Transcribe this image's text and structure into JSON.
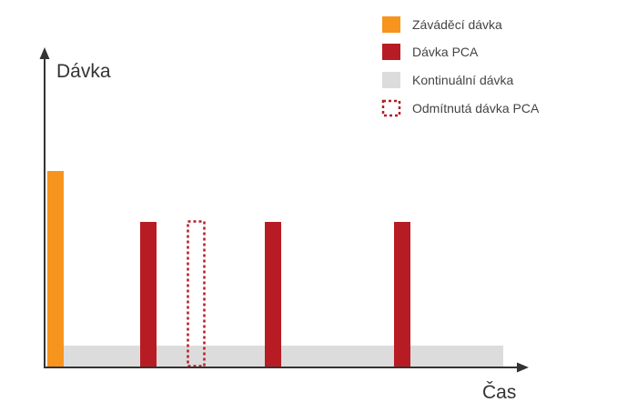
{
  "diagram": {
    "y_axis_label": "Dávka",
    "x_axis_label": "Čas"
  },
  "legend": {
    "items": [
      {
        "key": "loading",
        "label": "Záváděcí dávka",
        "color": "#f7941d",
        "style": "filled"
      },
      {
        "key": "pca",
        "label": "Dávka PCA",
        "color": "#b71c24",
        "style": "filled"
      },
      {
        "key": "continuous",
        "label": "Kontinuální dávka",
        "color": "#dcdcdc",
        "style": "filled"
      },
      {
        "key": "rejected",
        "label": "Odmítnutá dávka PCA",
        "color": "#b71c24",
        "style": "dotted"
      }
    ]
  },
  "colors": {
    "axis": "#333333",
    "loading_dose": "#f7941d",
    "pca_dose": "#b71c24",
    "continuous_dose": "#dcdcdc",
    "rejected_dose": "#b71c24"
  }
}
